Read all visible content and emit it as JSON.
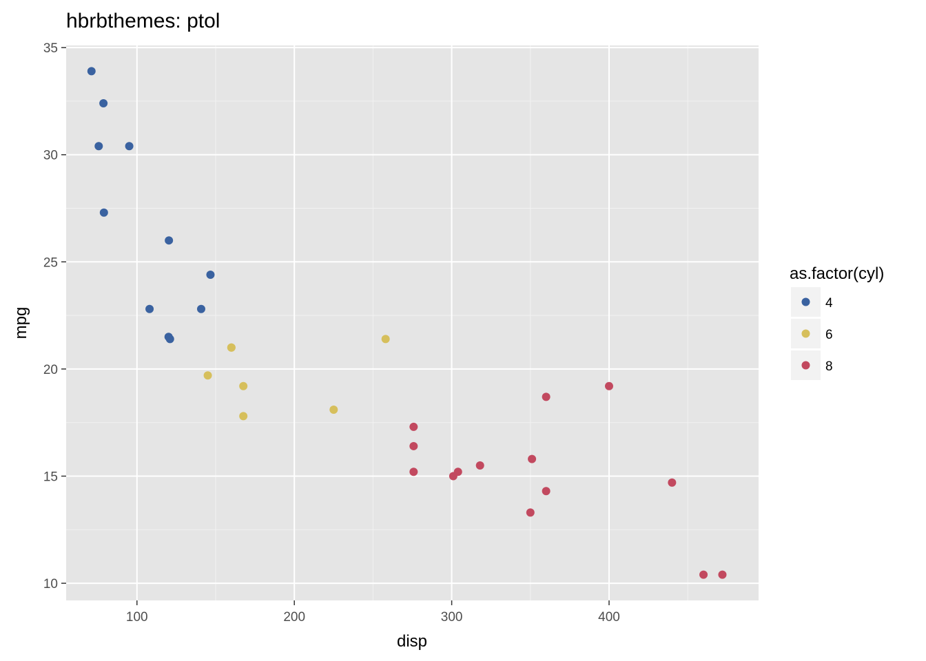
{
  "chart_data": {
    "type": "scatter",
    "title": "hbrbthemes: ptol",
    "xlabel": "disp",
    "ylabel": "mpg",
    "xlim": [
      55,
      495
    ],
    "ylim": [
      9.2,
      35.1
    ],
    "x_ticks": [
      100,
      200,
      300,
      400
    ],
    "y_ticks": [
      10,
      15,
      20,
      25,
      30,
      35
    ],
    "x_tick_labels": [
      "100",
      "200",
      "300",
      "400"
    ],
    "y_tick_labels": [
      "10",
      "15",
      "20",
      "25",
      "30",
      "35"
    ],
    "grid": true,
    "legend": {
      "title": "as.factor(cyl)",
      "position": "right"
    },
    "series": [
      {
        "name": "4",
        "color": "#3a62a0",
        "points": [
          [
            71.1,
            33.9
          ],
          [
            78.7,
            32.4
          ],
          [
            75.7,
            30.4
          ],
          [
            95.1,
            30.4
          ],
          [
            79.0,
            27.3
          ],
          [
            120.3,
            26.0
          ],
          [
            146.7,
            24.4
          ],
          [
            108.0,
            22.8
          ],
          [
            140.8,
            22.8
          ],
          [
            120.1,
            21.5
          ],
          [
            121.0,
            21.4
          ]
        ]
      },
      {
        "name": "6",
        "color": "#d6bf5c",
        "points": [
          [
            160.0,
            21.0
          ],
          [
            160.0,
            21.0
          ],
          [
            258.0,
            21.4
          ],
          [
            145.0,
            19.7
          ],
          [
            167.6,
            19.2
          ],
          [
            225.0,
            18.1
          ],
          [
            167.6,
            17.8
          ]
        ]
      },
      {
        "name": "8",
        "color": "#c2495f",
        "points": [
          [
            400.0,
            19.2
          ],
          [
            360.0,
            18.7
          ],
          [
            275.8,
            17.3
          ],
          [
            275.8,
            16.4
          ],
          [
            351.0,
            15.8
          ],
          [
            318.0,
            15.5
          ],
          [
            304.0,
            15.2
          ],
          [
            275.8,
            15.2
          ],
          [
            301.0,
            15.0
          ],
          [
            440.0,
            14.7
          ],
          [
            360.0,
            14.3
          ],
          [
            350.0,
            13.3
          ],
          [
            460.0,
            10.4
          ],
          [
            472.0,
            10.4
          ]
        ]
      }
    ]
  }
}
